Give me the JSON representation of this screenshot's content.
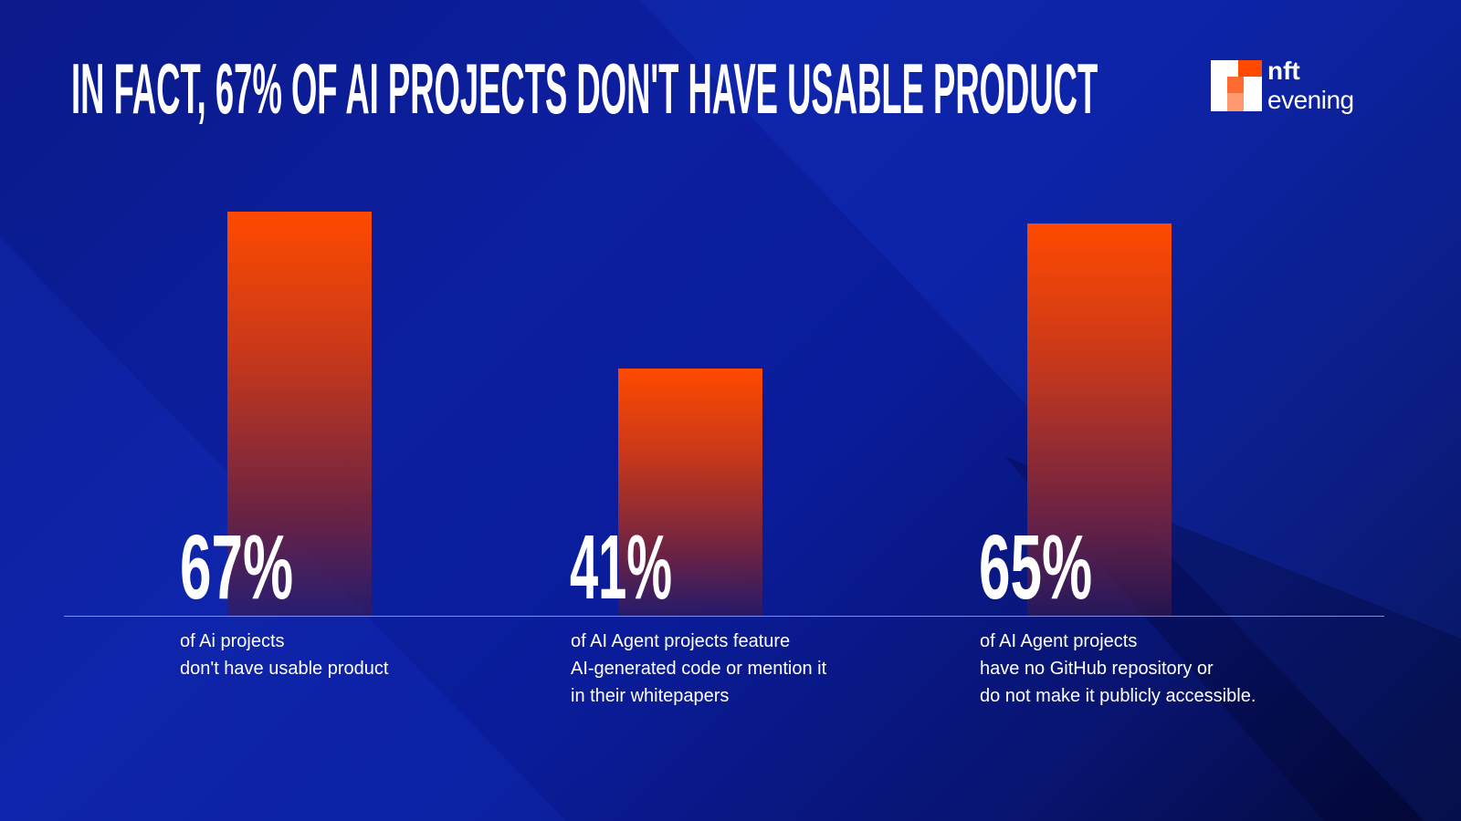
{
  "title": "IN FACT, 67% OF AI PROJECTS DON'T HAVE USABLE PRODUCT",
  "logo": {
    "line1": "nft",
    "line2": "evening",
    "colors": [
      "#ffffff",
      "#ff4a00",
      "#ff7a45",
      "#ffa27a"
    ]
  },
  "colors": {
    "bar_top": "#ff4a00",
    "background": "#0c1fa0"
  },
  "chart_data": {
    "type": "bar",
    "categories": [
      "of Ai projects don't have usable product",
      "of AI Agent projects feature AI-generated code or mention it in their whitepapers",
      "of AI Agent projects have no GitHub repository or do not make it publicly accessible."
    ],
    "values": [
      67,
      41,
      65
    ],
    "unit": "%",
    "grid": false,
    "items": [
      {
        "label": "67%",
        "caption": [
          "of Ai projects",
          "don't have usable product"
        ]
      },
      {
        "label": "41%",
        "caption": [
          "of AI Agent projects feature",
          "AI-generated code or mention it",
          "in their whitepapers"
        ]
      },
      {
        "label": "65%",
        "caption": [
          "of AI Agent projects",
          "have no GitHub repository or",
          "do not make it publicly accessible."
        ]
      }
    ]
  }
}
